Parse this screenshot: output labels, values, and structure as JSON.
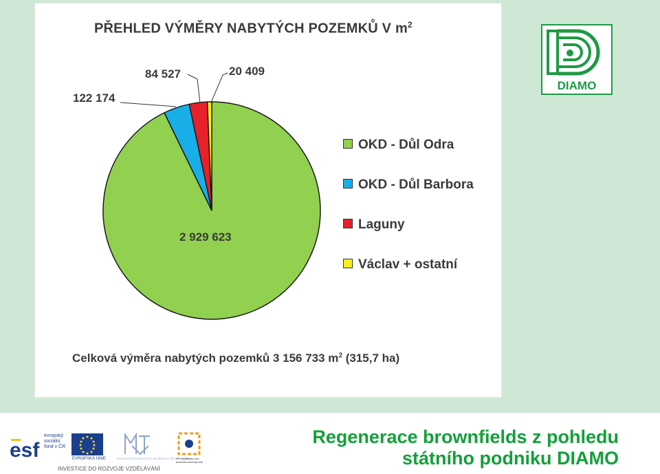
{
  "chart_data": {
    "type": "pie",
    "title": "PŘEHLED VÝMĚRY NABYTÝCH POZEMKŮ V m",
    "title_sup": "2",
    "categories": [
      "OKD - Důl Odra",
      "OKD - Důl Barbora",
      "Laguny",
      "Václav + ostatní"
    ],
    "values": [
      2929623,
      122174,
      84527,
      20409
    ],
    "data_labels": [
      "2 929 623",
      "122 174",
      "84 527",
      "20 409"
    ],
    "colors": [
      "#92d050",
      "#1aaee8",
      "#e8202a",
      "#ffee1a"
    ],
    "legend_position": "right"
  },
  "summary": {
    "label": "Celková výměra nabytých pozemků  3 156 733 m",
    "sup": "2",
    "suffix": " (315,7 ha)"
  },
  "logo": {
    "text": "DIAMO",
    "color": "#1e9a44"
  },
  "footer": {
    "title_line1": "Regenerace brownfields z pohledu",
    "title_line2": "státního podniku DIAMO",
    "investice": "INVESTICE DO ROZVOJE VZDĚLÁVÁNÍ",
    "esf_text": [
      "evropský",
      "sociální",
      "fond v ČR"
    ],
    "eu_label": "EVROPSKÁ UNIE",
    "msmt_label": "MINISTERSTVO ŠKOLSTVÍ, MLÁDEŽE A TĚLOVÝCHOVY",
    "op_label": "OP Vzdělávání pro konkurenceschopnost"
  }
}
